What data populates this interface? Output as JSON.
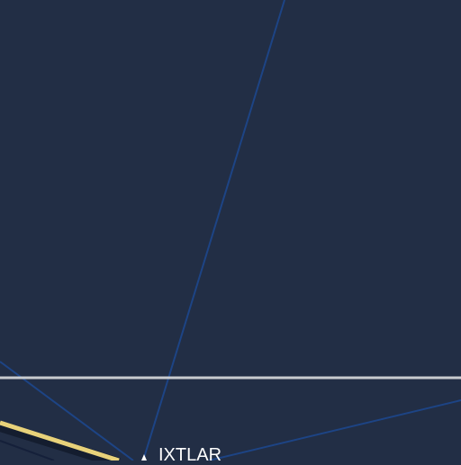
{
  "map": {
    "background_color": "#222e45",
    "colors": {
      "thin_lines": "#1d4485",
      "highlighted_route": "#e8d27a",
      "route_shadow": "#101828",
      "horizontal_line": "#c9ccd0",
      "label_text": "#ffffff"
    },
    "labels": {
      "waypoint": "IXTLAR"
    },
    "features": [
      {
        "name": "horizontal-line",
        "kind": "line"
      },
      {
        "name": "highlighted-route",
        "kind": "route"
      },
      {
        "name": "thin-line",
        "kind": "line"
      }
    ]
  }
}
